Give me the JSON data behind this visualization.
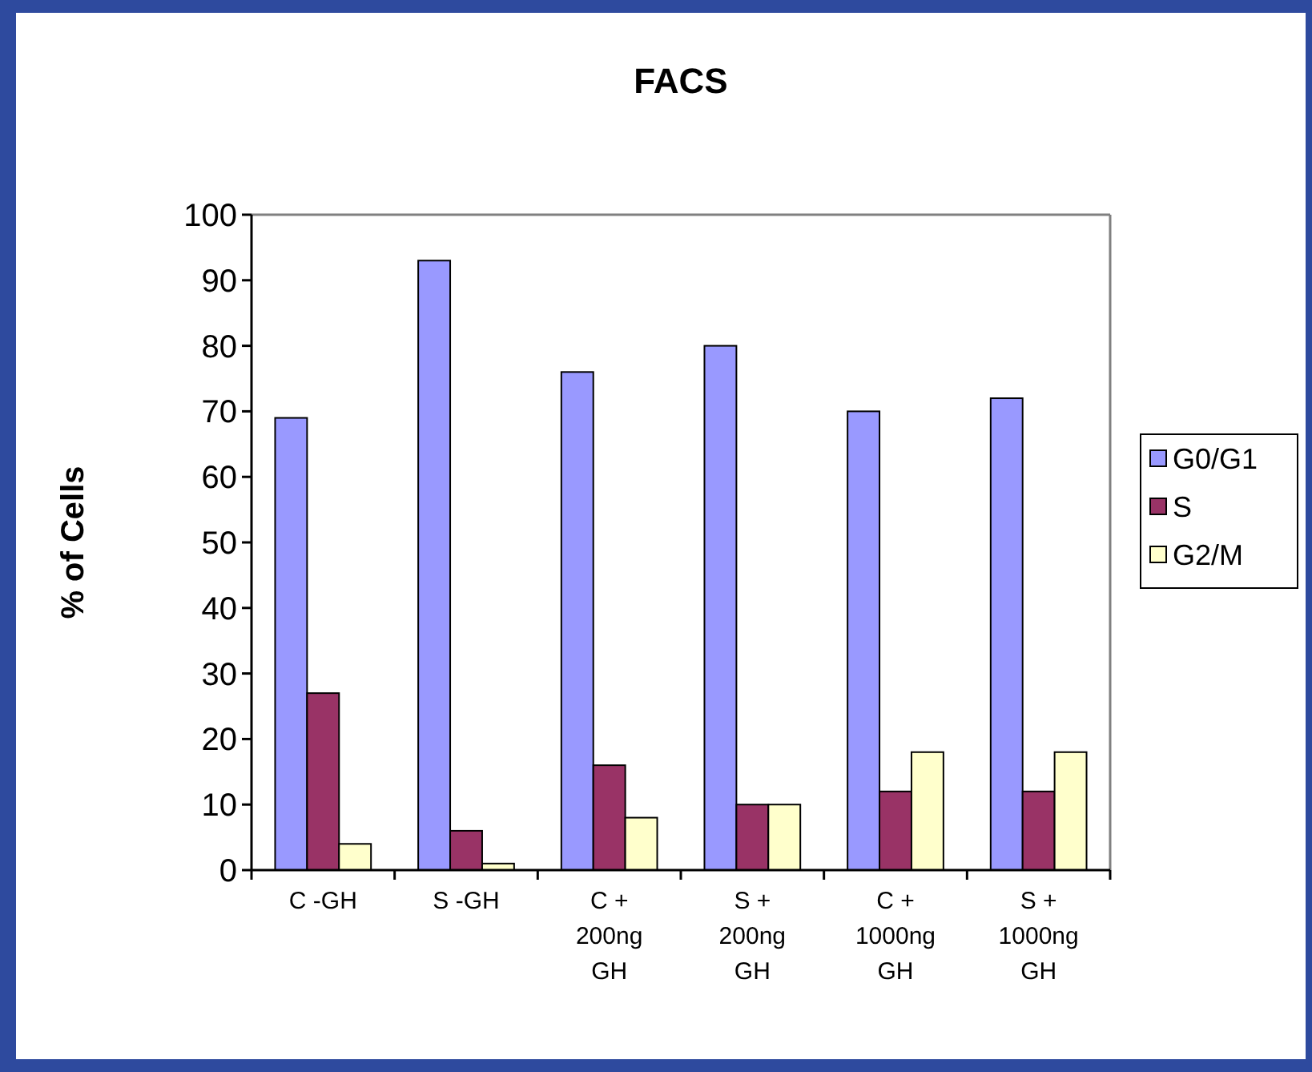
{
  "chart_data": {
    "type": "bar",
    "title": "FACS",
    "ylabel": "% of Cells",
    "categories": [
      "C -GH",
      "S -GH",
      "C +\n200ng\nGH",
      "S +\n200ng\nGH",
      "C +\n1000ng\nGH",
      "S +\n1000ng\nGH"
    ],
    "series": [
      {
        "name": "G0/G1",
        "color": "#9999ff",
        "values": [
          69,
          93,
          76,
          80,
          70,
          72
        ]
      },
      {
        "name": "S",
        "color": "#993366",
        "values": [
          27,
          6,
          16,
          10,
          12,
          12
        ]
      },
      {
        "name": "G2/M",
        "color": "#ffffcc",
        "values": [
          4,
          1,
          8,
          10,
          18,
          18
        ]
      }
    ],
    "ylim": [
      0,
      100
    ],
    "yticks": [
      0,
      10,
      20,
      30,
      40,
      50,
      60,
      70,
      80,
      90,
      100
    ],
    "grid": false,
    "legend": "right"
  }
}
